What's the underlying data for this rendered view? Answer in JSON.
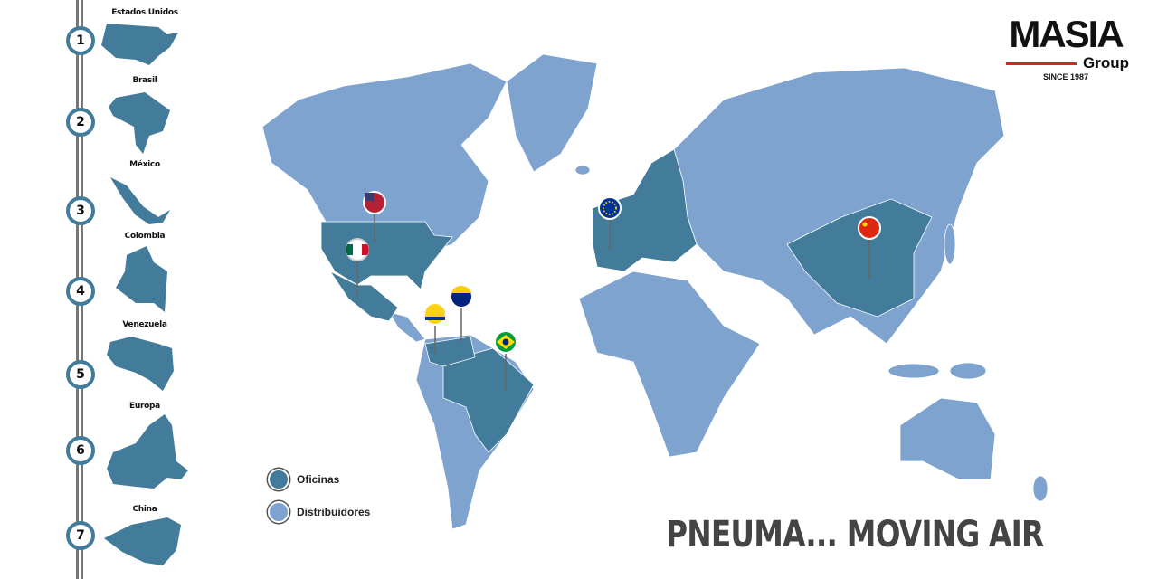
{
  "colors": {
    "offices": "#437c9b",
    "distributors": "#7ea3cf",
    "rail": "#777777",
    "accent": "#d9261c"
  },
  "sidebar": {
    "items": [
      {
        "number": "1",
        "label": "Estados Unidos"
      },
      {
        "number": "2",
        "label": "Brasil"
      },
      {
        "number": "3",
        "label": "México"
      },
      {
        "number": "4",
        "label": "Colombia"
      },
      {
        "number": "5",
        "label": "Venezuela"
      },
      {
        "number": "6",
        "label": "Europa"
      },
      {
        "number": "7",
        "label": "China"
      }
    ]
  },
  "logo": {
    "name": "MASIA",
    "sub": "Group",
    "since": "SINCE 1987"
  },
  "legend": [
    {
      "label": "Oficinas",
      "color": "#437c9b"
    },
    {
      "label": "Distribuidores",
      "color": "#7ea3cf"
    }
  ],
  "pins": [
    "usa-flag",
    "mexico-flag",
    "venezuela-flag",
    "colombia-flag",
    "brazil-flag",
    "eu-flag",
    "china-flag"
  ],
  "slogan": "PNEUMA... MOVING AIR"
}
